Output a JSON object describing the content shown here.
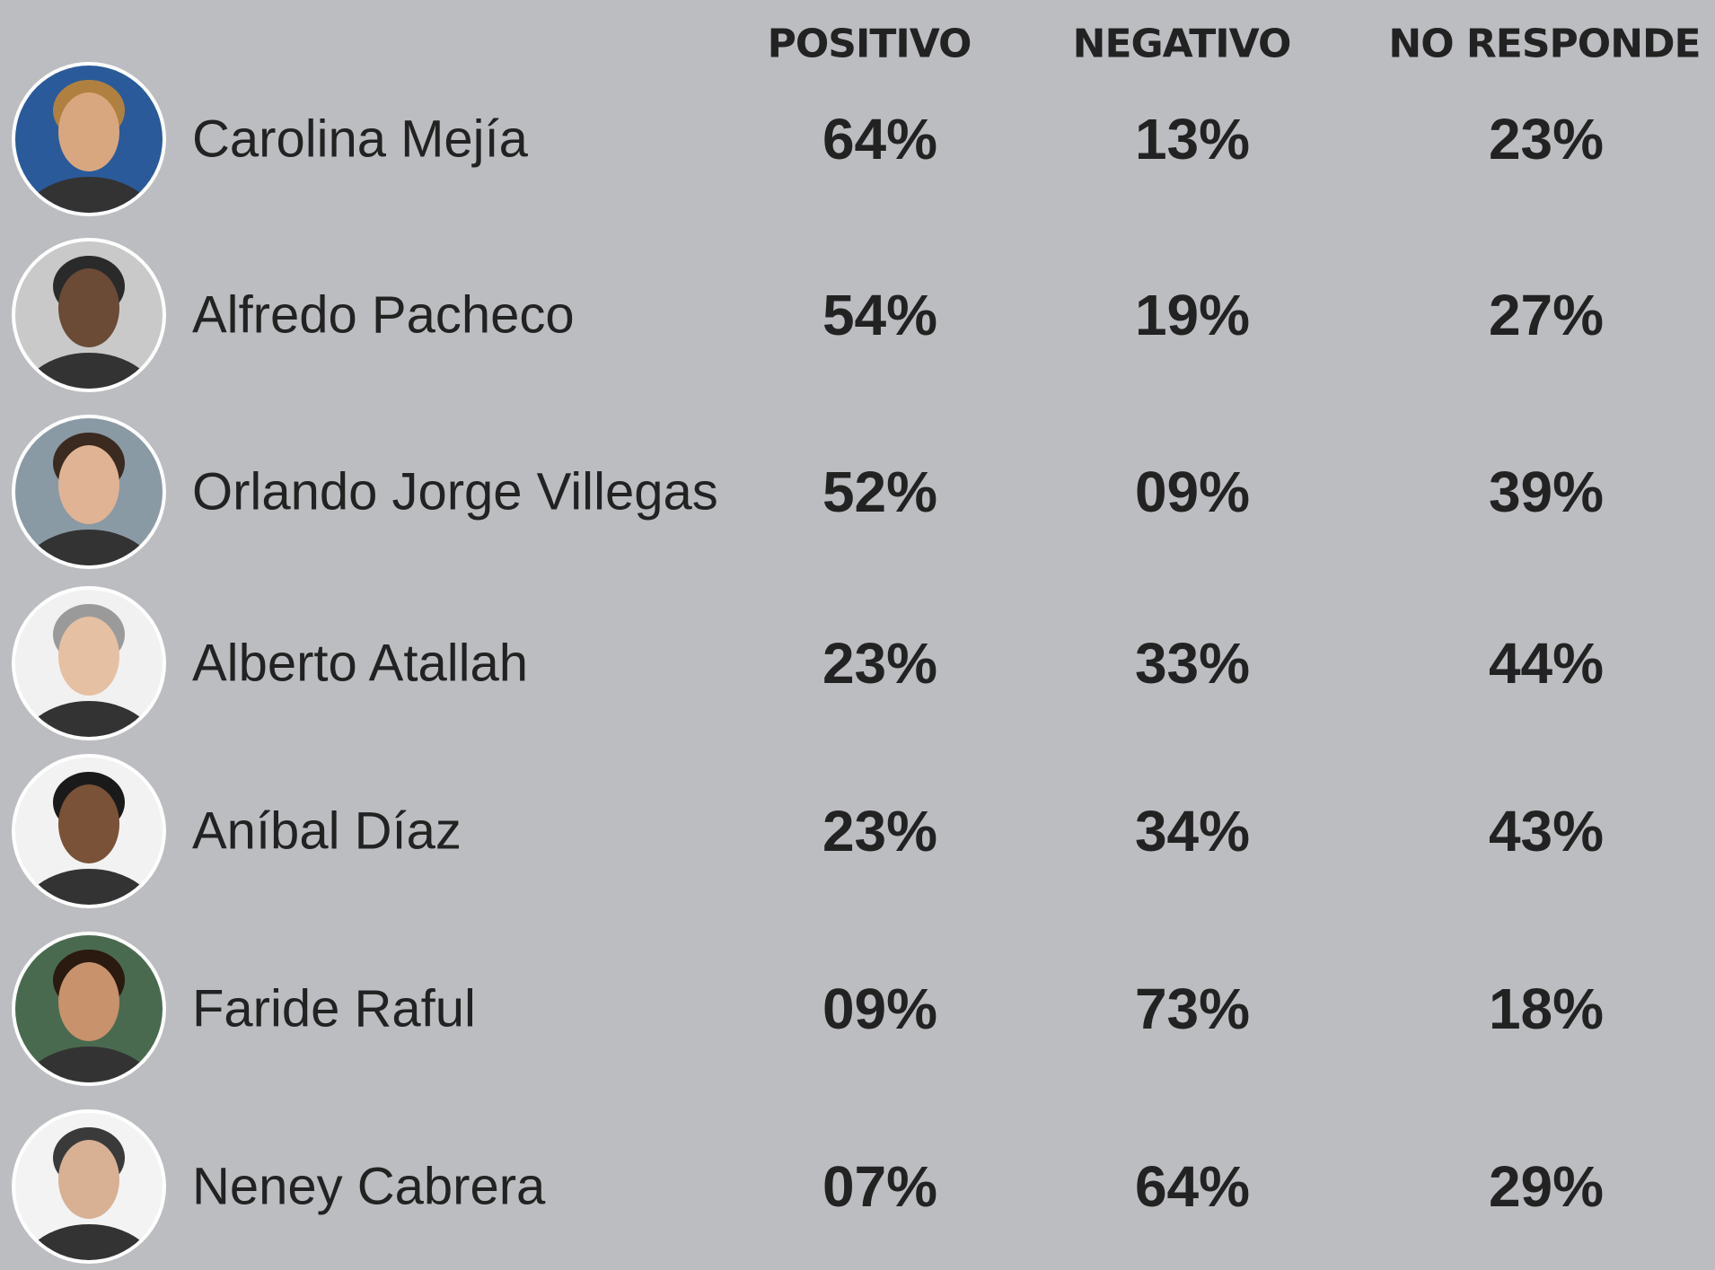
{
  "header": {
    "columns": [
      "POSITIVO",
      "NEGATIVO",
      "NO RESPONDE"
    ]
  },
  "table": {
    "rows": [
      [
        "Carolina Mejía",
        "64%",
        "13%",
        "23%"
      ],
      [
        "Alfredo Pacheco",
        "54%",
        "19%",
        "27%"
      ],
      [
        "Orlando Jorge Villegas",
        "52%",
        "09%",
        "39%"
      ],
      [
        "Alberto Atallah",
        "23%",
        "33%",
        "44%"
      ],
      [
        "Aníbal Díaz",
        "23%",
        "34%",
        "43%"
      ],
      [
        "Faride Raful",
        "09%",
        "73%",
        "18%"
      ],
      [
        "Neney Cabrera",
        "07%",
        "64%",
        "29%"
      ]
    ]
  }
}
